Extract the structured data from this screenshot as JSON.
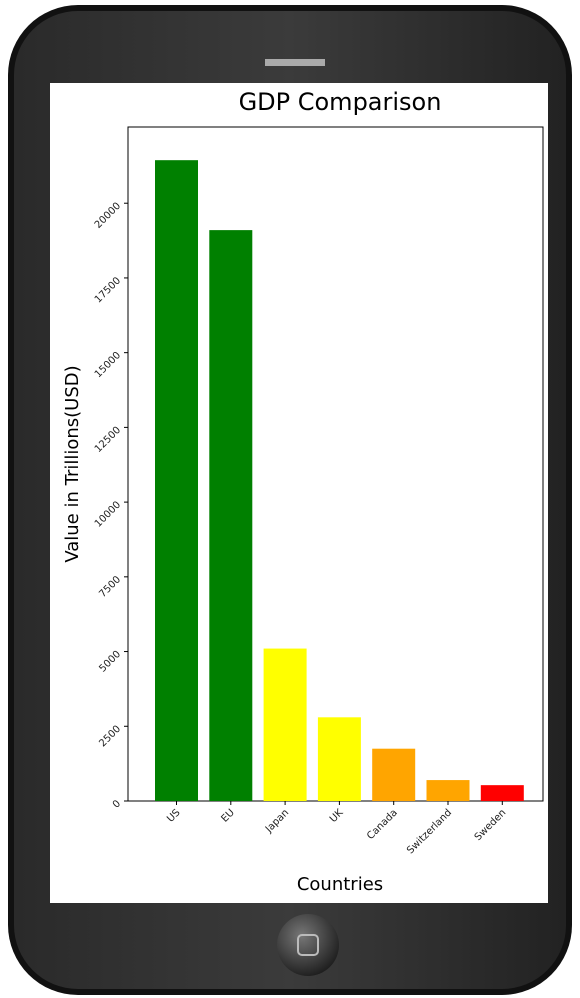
{
  "chart_data": {
    "type": "bar",
    "title": "GDP Comparison",
    "x_label": "Countries",
    "y_label": "Value in Trillions(USD)",
    "categories": [
      "US",
      "EU",
      "Japan",
      "UK",
      "Canada",
      "Switzerland",
      "Sweden"
    ],
    "values": [
      21440,
      19100,
      5100,
      2800,
      1750,
      700,
      530
    ],
    "colors": [
      "#008000",
      "#008000",
      "#ffff00",
      "#ffff00",
      "#ffa500",
      "#ffa500",
      "#ff0000"
    ],
    "ylim": [
      0,
      22550
    ],
    "yticks": [
      0,
      2500,
      5000,
      7500,
      10000,
      12500,
      15000,
      17500,
      20000
    ]
  }
}
